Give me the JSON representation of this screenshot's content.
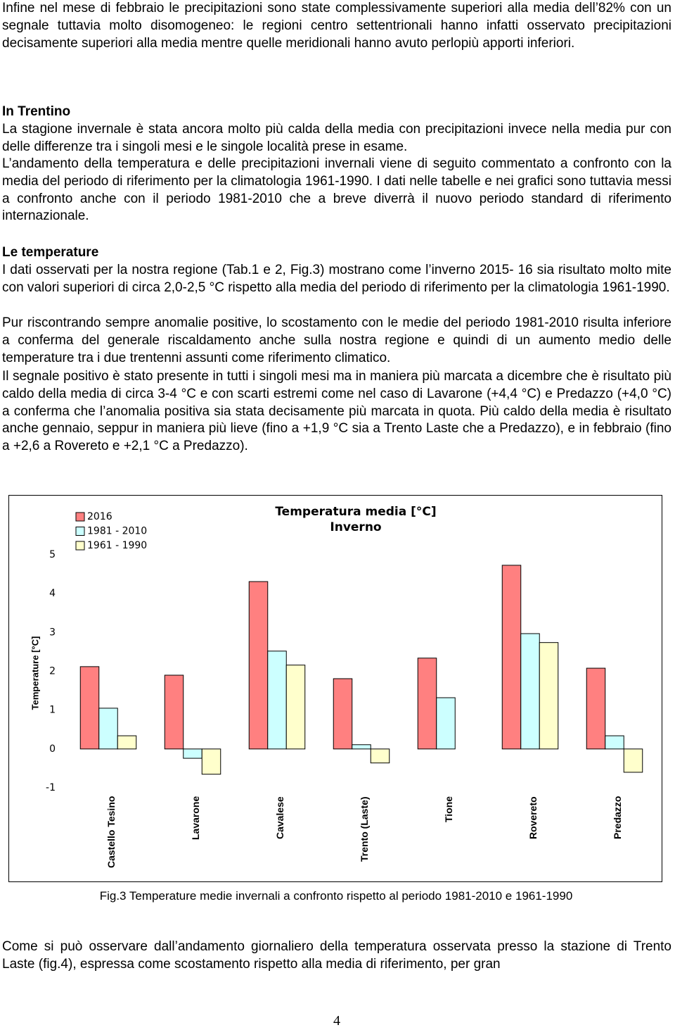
{
  "intro": "Infine nel mese di febbraio le precipitazioni sono state complessivamente superiori alla media dell’82% con un segnale tuttavia molto disomogeneo: le regioni centro settentrionali hanno infatti osservato precipitazioni decisamente superiori alla media mentre quelle meridionali hanno avuto perlopiù apporti inferiori.",
  "section": {
    "title": "In Trentino",
    "paragraphs": [
      "La stagione invernale è stata ancora molto più calda della media con precipitazioni invece nella media pur con delle differenze tra i singoli mesi e le singole località prese in esame.",
      "L’andamento della temperatura e delle precipitazioni invernali viene di seguito commentato a confronto con la media del periodo di riferimento per la climatologia 1961-1990. I dati nelle tabelle e nei grafici sono tuttavia messi a confronto anche con il periodo 1981-2010 che a breve diverrà il nuovo periodo standard di riferimento internazionale."
    ]
  },
  "subsection": {
    "title": "Le temperature",
    "paragraphs": [
      "I dati osservati per la nostra regione (Tab.1 e 2, Fig.3) mostrano come l’inverno 2015- 16 sia risultato molto mite con valori superiori di circa 2,0-2,5 °C rispetto alla media del periodo di riferimento per la climatologia 1961-1990.",
      "Pur riscontrando sempre anomalie positive, lo scostamento con le medie del periodo 1981-2010 risulta inferiore a conferma del generale riscaldamento anche sulla nostra regione e quindi di un aumento medio delle temperature tra i due trentenni assunti come riferimento climatico.",
      "Il segnale positivo è stato presente in tutti i singoli mesi ma in maniera più marcata a dicembre che è risultato più caldo della media di circa 3-4 °C e con scarti estremi come nel caso di Lavarone (+4,4 °C) e Predazzo (+4,0 °C) a conferma che l’anomalia positiva sia stata decisamente più marcata in quota. Più caldo della media è risultato anche gennaio, seppur in maniera più lieve (fino a +1,9 °C sia a Trento Laste che a Predazzo), e in febbraio (fino a +2,6 a Rovereto e +2,1 °C a Predazzo)."
    ]
  },
  "chart_data": {
    "type": "bar",
    "title": "Temperatura media [°C] Inverno",
    "y_label": "Temperature [°C]",
    "categories": [
      "Castello Tesino",
      "Lavarone",
      "Cavalese",
      "Trento (Laste)",
      "Tione",
      "Rovereto",
      "Predazzo"
    ],
    "series": [
      {
        "name": "2016",
        "color": "#ff8080",
        "values": [
          2.12,
          1.9,
          4.31,
          1.81,
          2.34,
          4.73,
          2.08
        ]
      },
      {
        "name": "1981 - 2010",
        "color": "#ccffff",
        "values": [
          1.05,
          -0.24,
          2.52,
          0.11,
          1.32,
          2.97,
          0.34
        ]
      },
      {
        "name": "1961 - 1990",
        "color": "#ffffcc",
        "values": [
          0.34,
          -0.65,
          2.16,
          -0.36,
          null,
          2.74,
          -0.6
        ]
      }
    ],
    "ylim": [
      -1,
      5
    ],
    "yticks": [
      -1,
      0,
      1,
      2,
      3,
      4,
      5
    ],
    "legend": "top-left"
  },
  "caption": "Fig.3 Temperature medie invernali a confronto rispetto al periodo 1981-2010 e 1961-1990",
  "closing": "Come si può osservare dall’andamento giornaliero della temperatura osservata presso la stazione di Trento Laste (fig.4), espressa come scostamento rispetto alla media di riferimento, per gran",
  "page_number": "4"
}
